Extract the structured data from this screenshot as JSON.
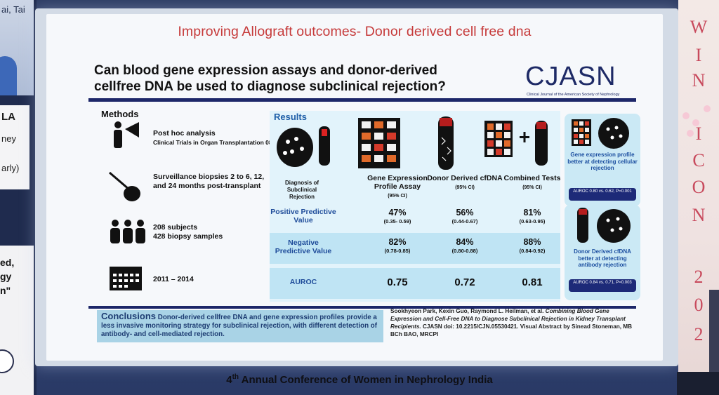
{
  "side_panel": {
    "line1": "ai, Tai",
    "line2": "LA",
    "line3": "ney",
    "line4": "arly)",
    "line5": "ed,",
    "line6": "gy",
    "line7": "n\""
  },
  "slide": {
    "title": "Improving Allograft outcomes- Donor derived cell free dna",
    "question_line1": "Can blood gene expression assays and donor-derived",
    "question_line2": "cellfree DNA be used to diagnose subclinical rejection?",
    "logo": "CJASN",
    "logo_sub": "Clinical Journal of the American Society of Nephrology",
    "methods": {
      "heading": "Methods",
      "items": [
        {
          "title": "Post hoc analysis",
          "sub": "Clinical Trials in Organ Transplantation 08"
        },
        {
          "title": "Surveillance biopsies 2 to 6, 12, and 24 months post-transplant",
          "sub": ""
        },
        {
          "title": "208 subjects",
          "sub2": "428 biopsy samples"
        },
        {
          "title": "2011 – 2014",
          "sub": ""
        }
      ]
    },
    "results": {
      "heading": "Results",
      "diagnosis_label": "Diagnosis of Subclinical Rejection",
      "columns": [
        {
          "name": "Gene Expression Profile Assay",
          "ci": "(95% CI)"
        },
        {
          "name": "Donor Derived cfDNA",
          "ci": "(95% CI)"
        },
        {
          "name": "Combined Tests",
          "ci": "(95% CI)"
        }
      ],
      "rows": [
        {
          "label": "Positive Predictive Value",
          "values": [
            "47%",
            "56%",
            "81%"
          ],
          "ranges": [
            "(0.35- 0.59)",
            "(0.44-0.67)",
            "(0.63-0.95)"
          ]
        },
        {
          "label": "Negative Predictive Value",
          "values": [
            "82%",
            "84%",
            "88%"
          ],
          "ranges": [
            "(0.78-0.85)",
            "(0.80-0.88)",
            "(0.84-0.92)"
          ]
        },
        {
          "label": "AUROC",
          "values": [
            "0.75",
            "0.72",
            "0.81"
          ],
          "ranges": [
            "",
            "",
            ""
          ]
        }
      ]
    },
    "callouts": [
      {
        "text": "Gene expression profile better at detecting cellular rejection",
        "pill": "AUROC 0.80 vs. 0.62, P=0.001"
      },
      {
        "text": "Donor Derived cfDNA better at detecting antibody rejection",
        "pill": "AUROC 0.84 vs. 0.71, P=0.003"
      }
    ],
    "conclusion": {
      "heading": "Conclusions",
      "text": "Donor-derived cellfree DNA and gene expression profiles provide a less invasive monitoring strategy for subclinical rejection, with different detection of antibody- and cell-mediated rejection."
    },
    "reference": {
      "authors": "Sookhyeon Park, Kexin Guo, Raymond L. Heilman, et al.",
      "title": "Combining Blood Gene Expression and Cell-Free DNA to Diagnose Subclinical Rejection in Kidney Transplant Recipients.",
      "doi": "CJASN doi: 10.2215/CJN.05530421.",
      "credit": "Visual Abstract by Sinead Stoneman, MB BCh BAO, MRCPI"
    }
  },
  "footer": {
    "ordinal": "4",
    "suffix": "th",
    "text": " Annual Conference of Women in Nephrology India"
  },
  "banner": {
    "letters": [
      "W",
      "I",
      "N",
      "I",
      "C",
      "O",
      "N",
      "2",
      "0",
      "2"
    ]
  },
  "colors": {
    "title_red": "#c63a3a",
    "navy": "#1d2769",
    "accent_blue": "#1f5fa8",
    "banner_pink": "#c84a5d"
  }
}
